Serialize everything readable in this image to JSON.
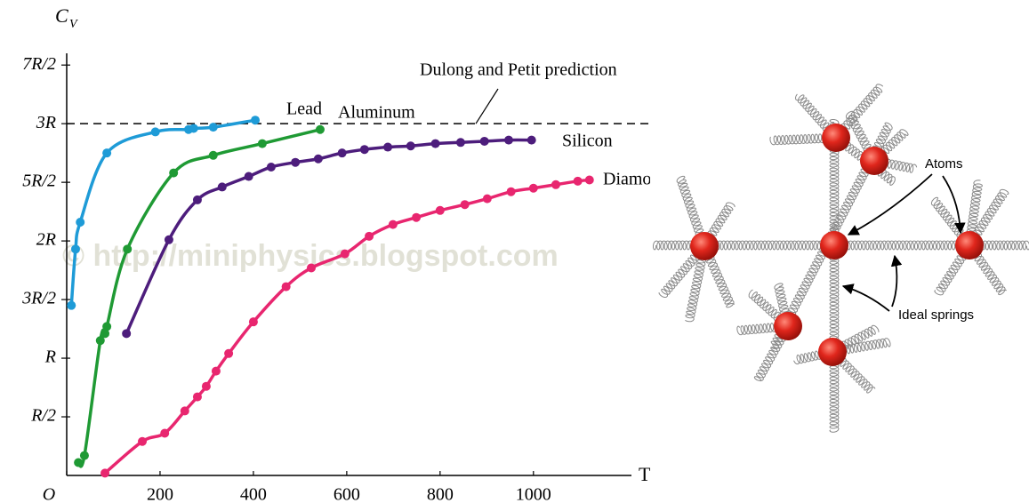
{
  "chart_data": {
    "type": "line",
    "y_label": "C",
    "y_label_sub": "V",
    "x_label": "T (K)",
    "xlim": [
      0,
      1210
    ],
    "ylim": [
      0,
      3.6
    ],
    "xticks": [
      {
        "value": 0,
        "label": "O"
      },
      200,
      400,
      600,
      800,
      1000
    ],
    "yticks": [
      {
        "value": 0.5,
        "label": "R/2"
      },
      {
        "value": 1,
        "label": "R"
      },
      {
        "value": 1.5,
        "label": "3R/2"
      },
      {
        "value": 2,
        "label": "2R"
      },
      {
        "value": 2.5,
        "label": "5R/2"
      },
      {
        "value": 3,
        "label": "3R"
      },
      {
        "value": 3.5,
        "label": "7R/2"
      }
    ],
    "reference_line": {
      "value": 3,
      "label": "Dulong and Petit prediction"
    },
    "watermark": "© http://miniphysics.blogspot.com",
    "series": [
      {
        "name": "Lead",
        "color": "#1e9bd7",
        "x": [
          10,
          19,
          29,
          86,
          190,
          261,
          272,
          314,
          404
        ],
        "values": [
          1.45,
          1.93,
          2.16,
          2.75,
          2.93,
          2.95,
          2.96,
          2.97,
          3.03
        ]
      },
      {
        "name": "Aluminum",
        "color": "#1f9a34",
        "x": [
          25,
          38,
          72,
          82,
          86,
          130,
          229,
          314,
          419,
          543
        ],
        "values": [
          0.11,
          0.17,
          1.15,
          1.21,
          1.27,
          1.93,
          2.58,
          2.73,
          2.83,
          2.95
        ]
      },
      {
        "name": "Silicon",
        "color": "#4d1d7c",
        "x": [
          128,
          219,
          280,
          333,
          390,
          438,
          490,
          539,
          590,
          638,
          688,
          737,
          790,
          844,
          895,
          947,
          996
        ],
        "values": [
          1.21,
          2.01,
          2.35,
          2.46,
          2.55,
          2.63,
          2.67,
          2.7,
          2.75,
          2.78,
          2.8,
          2.81,
          2.83,
          2.84,
          2.85,
          2.86,
          2.86
        ]
      },
      {
        "name": "Diamond",
        "color": "#e8266f",
        "x": [
          82,
          162,
          210,
          253,
          280,
          299,
          320,
          347,
          400,
          470,
          524,
          596,
          648,
          699,
          749,
          800,
          853,
          901,
          952,
          1000,
          1048,
          1095,
          1120
        ],
        "values": [
          0.02,
          0.29,
          0.36,
          0.55,
          0.67,
          0.76,
          0.89,
          1.04,
          1.31,
          1.61,
          1.77,
          1.89,
          2.04,
          2.14,
          2.2,
          2.26,
          2.31,
          2.36,
          2.42,
          2.45,
          2.48,
          2.51,
          2.52
        ]
      }
    ]
  },
  "diagram": {
    "atoms_label": "Atoms",
    "springs_label": "Ideal springs"
  }
}
